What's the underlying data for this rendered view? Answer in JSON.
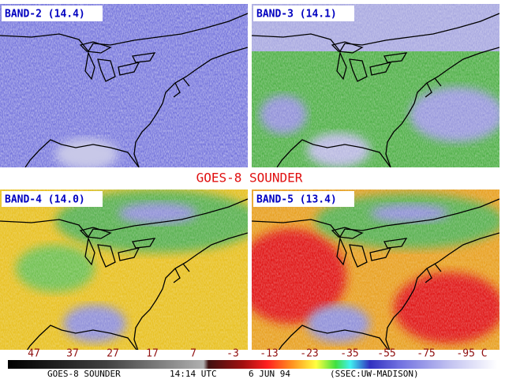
{
  "panels": [
    {
      "label": "BAND-2 (14.4)"
    },
    {
      "label": "BAND-3 (14.1)"
    },
    {
      "label": "BAND-4 (14.0)"
    },
    {
      "label": "BAND-5 (13.4)"
    }
  ],
  "title": "GOES-8 SOUNDER",
  "scale": {
    "labels": [
      "47",
      "37",
      "27",
      "17",
      "7",
      "-3",
      "-13",
      "-23",
      "-35",
      "-55",
      "-75",
      "-95 C"
    ]
  },
  "footer": {
    "parts": [
      "GOES-8 SOUNDER",
      "14:14 UTC",
      "6 JUN 94",
      "(SSEC:UW-MADISON)"
    ]
  }
}
